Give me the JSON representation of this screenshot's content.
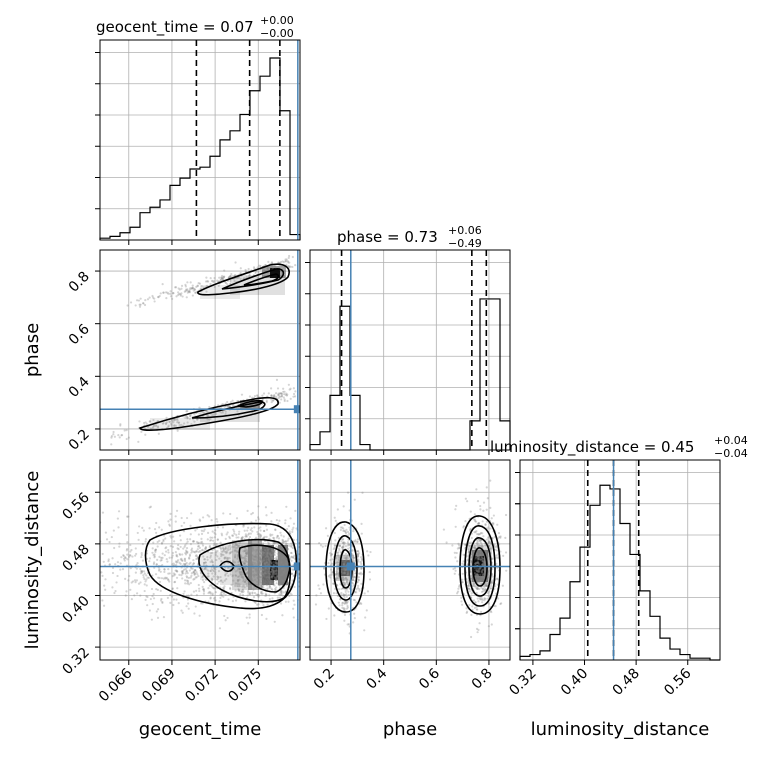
{
  "chart_data": {
    "type": "corner",
    "colors": {
      "truth": "#4682b4",
      "hist": "#000000",
      "grid": "#b0b0b0",
      "sample": "#888888"
    },
    "parameters": [
      {
        "name": "geocent_time",
        "axis_label": "geocent_time",
        "title_prefix": "geocent_time = 0.07",
        "title_sup": "+0.00",
        "title_sub": "−0.00",
        "range": [
          0.064,
          0.0779
        ],
        "ticks": [
          0.066,
          0.069,
          0.072,
          0.075
        ],
        "tick_labels": [
          "0.066",
          "0.069",
          "0.072",
          "0.075"
        ],
        "truth": 0.07775,
        "quantiles": [
          0.0707,
          0.0744,
          0.0765
        ],
        "hist_bins": [
          0.01,
          0.02,
          0.04,
          0.07,
          0.15,
          0.18,
          0.22,
          0.3,
          0.34,
          0.39,
          0.4,
          0.46,
          0.55,
          0.6,
          0.69,
          0.82,
          0.9,
          1.0,
          0.71,
          0.03
        ]
      },
      {
        "name": "phase",
        "axis_label": "phase",
        "title_prefix": "phase = 0.73",
        "title_sup": "+0.06",
        "title_sub": "−0.49",
        "range": [
          0.12,
          0.88
        ],
        "ticks": [
          0.2,
          0.4,
          0.6,
          0.8
        ],
        "tick_labels": [
          "0.2",
          "0.4",
          "0.6",
          "0.8"
        ],
        "truth": 0.275,
        "quantiles": [
          0.24,
          0.735,
          0.79
        ],
        "hist_bins": [
          0.03,
          0.1,
          0.3,
          0.79,
          0.3,
          0.03,
          0.0,
          0.0,
          0.0,
          0.0,
          0.0,
          0.0,
          0.0,
          0.0,
          0.0,
          0.0,
          0.16,
          0.83,
          0.83,
          0.16
        ]
      },
      {
        "name": "luminosity_distance",
        "axis_label": "luminosity_distance",
        "title_prefix": "luminosity_distance = 0.45",
        "title_sup": "+0.04",
        "title_sub": "−0.04",
        "range": [
          0.3,
          0.61
        ],
        "ticks": [
          0.32,
          0.4,
          0.48,
          0.56
        ],
        "tick_labels": [
          "0.32",
          "0.40",
          "0.48",
          "0.56"
        ],
        "truth": 0.445,
        "quantiles": [
          0.405,
          0.445,
          0.484
        ],
        "hist_bins": [
          0.02,
          0.03,
          0.05,
          0.14,
          0.23,
          0.43,
          0.62,
          0.85,
          0.96,
          0.94,
          0.75,
          0.58,
          0.38,
          0.24,
          0.12,
          0.06,
          0.03,
          0.01,
          0.01,
          0.0
        ]
      }
    ]
  }
}
